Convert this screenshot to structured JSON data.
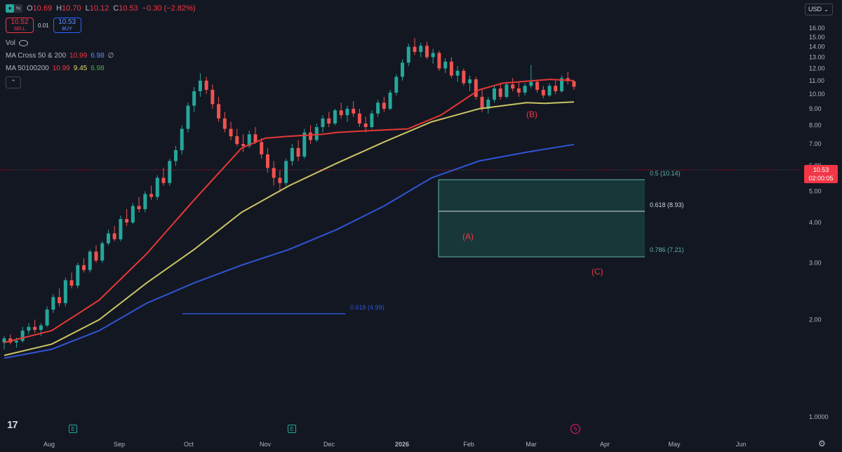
{
  "header": {
    "ohlc": [
      {
        "key": "O",
        "value": "10.69"
      },
      {
        "key": "H",
        "value": "10.70"
      },
      {
        "key": "L",
        "value": "10.12"
      },
      {
        "key": "C",
        "value": "10.53"
      }
    ],
    "change": "−0.30 (−2.82%)"
  },
  "trade": {
    "sell_price": "10.52",
    "sell_label": "SELL",
    "spread": "0.01",
    "buy_price": "10.53",
    "buy_label": "BUY"
  },
  "indicators": {
    "vol_label": "Vol",
    "ma_cross": {
      "name": "MA Cross 50 & 200",
      "v1": "10.99",
      "v2": "6.98",
      "extra": "∅"
    },
    "ma_triple": {
      "name": "MA 50100200",
      "v1": "10.99",
      "v2": "9.45",
      "v3": "6.98"
    }
  },
  "currency": "USD",
  "last_price": {
    "value": "10.53",
    "countdown": "02:00:05"
  },
  "colors": {
    "up": "#26a69a",
    "down": "#ef5350",
    "ma50": "#e53935",
    "ma100": "#c9c463",
    "ma200": "#2f55d4",
    "fib_zone": "#1f5f57",
    "annotation": "#f23645"
  },
  "icons": [
    "eye-icon",
    "chevron-up-icon",
    "chevron-down-icon",
    "settings-icon",
    "earnings-icon",
    "dividend-icon",
    "tradingview-logo-icon"
  ],
  "chart_data": {
    "type": "candlestick",
    "y_scale": "log",
    "y_ticks": [
      "16.00",
      "15.00",
      "14.00",
      "13.00",
      "12.00",
      "11.00",
      "10.00",
      "9.00",
      "8.00",
      "7.00",
      "6.00",
      "5.00",
      "4.00",
      "3.00",
      "2.00",
      "1.0000"
    ],
    "y_tick_values": [
      16,
      15,
      14,
      13,
      12,
      11,
      10,
      9,
      8,
      7,
      6,
      5,
      4,
      3,
      2,
      1
    ],
    "x_ticks": [
      "Aug",
      "Sep",
      "Oct",
      "Nov",
      "Dec",
      "2026",
      "Feb",
      "Mar",
      "Apr",
      "May",
      "Jun"
    ],
    "series": [
      {
        "name": "MA 50",
        "points": [
          [
            0,
            1.7
          ],
          [
            10,
            1.85
          ],
          [
            20,
            2.3
          ],
          [
            30,
            3.2
          ],
          [
            40,
            4.7
          ],
          [
            50,
            6.8
          ],
          [
            55,
            7.3
          ],
          [
            60,
            7.4
          ],
          [
            67,
            7.5
          ],
          [
            70,
            7.6
          ],
          [
            77,
            7.7
          ],
          [
            85,
            7.8
          ],
          [
            92,
            8.6
          ],
          [
            100,
            10.3
          ],
          [
            105,
            10.8
          ],
          [
            115,
            11.1
          ],
          [
            120,
            11.0
          ]
        ]
      },
      {
        "name": "MA 100",
        "points": [
          [
            0,
            1.55
          ],
          [
            10,
            1.68
          ],
          [
            20,
            2.0
          ],
          [
            30,
            2.6
          ],
          [
            40,
            3.3
          ],
          [
            50,
            4.3
          ],
          [
            60,
            5.2
          ],
          [
            70,
            6.1
          ],
          [
            80,
            7.1
          ],
          [
            90,
            8.2
          ],
          [
            100,
            9.0
          ],
          [
            105,
            9.2
          ],
          [
            110,
            9.4
          ],
          [
            114,
            9.35
          ],
          [
            120,
            9.45
          ]
        ]
      },
      {
        "name": "MA 200",
        "points": [
          [
            0,
            1.52
          ],
          [
            10,
            1.62
          ],
          [
            20,
            1.85
          ],
          [
            30,
            2.25
          ],
          [
            40,
            2.6
          ],
          [
            50,
            2.95
          ],
          [
            60,
            3.3
          ],
          [
            70,
            3.8
          ],
          [
            80,
            4.5
          ],
          [
            90,
            5.5
          ],
          [
            100,
            6.2
          ],
          [
            110,
            6.6
          ],
          [
            120,
            6.98
          ]
        ]
      }
    ],
    "candles_summary": "approximate daily candles from ~1.6 (late Jul 2025) to peak ~14.9 (early Jan 2026), last close 10.53",
    "candles": [
      [
        1.7,
        1.78,
        1.62,
        1.75
      ],
      [
        1.75,
        1.8,
        1.68,
        1.7
      ],
      [
        1.7,
        1.76,
        1.64,
        1.72
      ],
      [
        1.72,
        1.9,
        1.7,
        1.85
      ],
      [
        1.85,
        1.95,
        1.8,
        1.9
      ],
      [
        1.9,
        2.0,
        1.82,
        1.86
      ],
      [
        1.86,
        1.95,
        1.78,
        1.92
      ],
      [
        1.92,
        2.2,
        1.9,
        2.15
      ],
      [
        2.15,
        2.4,
        2.1,
        2.35
      ],
      [
        2.35,
        2.5,
        2.2,
        2.25
      ],
      [
        2.25,
        2.7,
        2.2,
        2.65
      ],
      [
        2.65,
        2.8,
        2.5,
        2.55
      ],
      [
        2.55,
        3.0,
        2.5,
        2.95
      ],
      [
        2.95,
        3.1,
        2.8,
        2.85
      ],
      [
        2.85,
        3.3,
        2.8,
        3.25
      ],
      [
        3.25,
        3.4,
        3.0,
        3.05
      ],
      [
        3.05,
        3.5,
        3.0,
        3.45
      ],
      [
        3.45,
        3.8,
        3.4,
        3.7
      ],
      [
        3.7,
        3.9,
        3.5,
        3.55
      ],
      [
        3.55,
        4.2,
        3.5,
        4.1
      ],
      [
        4.1,
        4.4,
        3.9,
        4.0
      ],
      [
        4.0,
        4.6,
        3.95,
        4.5
      ],
      [
        4.5,
        4.8,
        4.3,
        4.4
      ],
      [
        4.4,
        5.0,
        4.3,
        4.9
      ],
      [
        4.9,
        5.2,
        4.7,
        4.8
      ],
      [
        4.8,
        5.6,
        4.7,
        5.5
      ],
      [
        5.5,
        5.9,
        5.2,
        5.3
      ],
      [
        5.3,
        6.3,
        5.2,
        6.2
      ],
      [
        6.2,
        6.9,
        6.0,
        6.7
      ],
      [
        6.7,
        8.0,
        6.5,
        7.8
      ],
      [
        7.8,
        9.4,
        7.6,
        9.2
      ],
      [
        9.2,
        10.5,
        8.8,
        10.2
      ],
      [
        10.2,
        11.6,
        9.8,
        11.0
      ],
      [
        11.0,
        11.3,
        10.0,
        10.3
      ],
      [
        10.3,
        10.7,
        9.0,
        9.3
      ],
      [
        9.3,
        9.8,
        8.2,
        8.4
      ],
      [
        8.4,
        8.8,
        7.6,
        7.8
      ],
      [
        7.8,
        8.2,
        7.2,
        7.4
      ],
      [
        7.4,
        7.8,
        6.9,
        7.0
      ],
      [
        7.0,
        7.5,
        6.6,
        6.9
      ],
      [
        6.9,
        7.7,
        6.8,
        7.5
      ],
      [
        7.5,
        7.9,
        7.0,
        7.1
      ],
      [
        7.1,
        7.3,
        6.3,
        6.5
      ],
      [
        6.5,
        6.8,
        5.7,
        5.9
      ],
      [
        5.9,
        6.2,
        5.2,
        5.5
      ],
      [
        5.5,
        5.8,
        5.0,
        5.3
      ],
      [
        5.3,
        6.3,
        5.2,
        6.2
      ],
      [
        6.2,
        7.0,
        6.0,
        6.8
      ],
      [
        6.8,
        7.2,
        6.2,
        6.4
      ],
      [
        6.4,
        7.8,
        6.3,
        7.6
      ],
      [
        7.6,
        8.0,
        7.0,
        7.2
      ],
      [
        7.2,
        8.1,
        7.1,
        7.9
      ],
      [
        7.9,
        8.6,
        7.6,
        8.4
      ],
      [
        8.4,
        8.8,
        7.9,
        8.1
      ],
      [
        8.1,
        9.0,
        8.0,
        8.9
      ],
      [
        8.9,
        9.4,
        8.4,
        8.6
      ],
      [
        8.6,
        9.2,
        8.2,
        9.0
      ],
      [
        9.0,
        9.5,
        8.5,
        8.7
      ],
      [
        8.7,
        9.0,
        7.9,
        8.1
      ],
      [
        8.1,
        8.5,
        7.6,
        7.9
      ],
      [
        7.9,
        8.9,
        7.8,
        8.7
      ],
      [
        8.7,
        9.6,
        8.5,
        9.4
      ],
      [
        9.4,
        9.8,
        8.8,
        9.0
      ],
      [
        9.0,
        10.3,
        8.9,
        10.1
      ],
      [
        10.1,
        11.5,
        9.9,
        11.3
      ],
      [
        11.3,
        12.8,
        11.0,
        12.5
      ],
      [
        12.5,
        14.3,
        12.2,
        14.0
      ],
      [
        14.0,
        14.9,
        13.2,
        13.5
      ],
      [
        13.5,
        14.4,
        13.0,
        14.1
      ],
      [
        14.1,
        14.5,
        12.8,
        13.0
      ],
      [
        13.0,
        13.8,
        12.4,
        13.4
      ],
      [
        13.4,
        13.6,
        11.8,
        12.0
      ],
      [
        12.0,
        12.9,
        11.6,
        12.6
      ],
      [
        12.6,
        13.0,
        11.2,
        11.4
      ],
      [
        11.4,
        12.2,
        10.9,
        11.8
      ],
      [
        11.8,
        12.0,
        10.6,
        10.8
      ],
      [
        10.8,
        11.4,
        10.2,
        11.1
      ],
      [
        11.1,
        11.3,
        9.6,
        9.8
      ],
      [
        9.8,
        10.4,
        8.8,
        9.0
      ],
      [
        9.0,
        9.8,
        8.7,
        9.6
      ],
      [
        9.6,
        10.6,
        9.4,
        10.4
      ],
      [
        10.4,
        10.7,
        9.6,
        9.8
      ],
      [
        9.8,
        10.9,
        9.7,
        10.7
      ],
      [
        10.7,
        11.2,
        10.2,
        10.4
      ],
      [
        10.4,
        10.9,
        9.8,
        10.1
      ],
      [
        10.1,
        10.8,
        9.9,
        10.6
      ],
      [
        10.6,
        12.3,
        10.4,
        10.9
      ],
      [
        10.9,
        11.1,
        10.1,
        10.3
      ],
      [
        10.3,
        10.6,
        9.7,
        9.9
      ],
      [
        9.9,
        10.8,
        9.8,
        10.6
      ],
      [
        10.6,
        11.0,
        10.0,
        10.2
      ],
      [
        10.2,
        11.4,
        10.1,
        11.2
      ],
      [
        11.2,
        11.7,
        10.7,
        10.95
      ],
      [
        10.95,
        11.0,
        10.3,
        10.53
      ]
    ],
    "fib_levels": [
      {
        "label": "0.5 (10.14)",
        "value": 10.14
      },
      {
        "label": "0.618 (8.93)",
        "value": 8.93
      },
      {
        "label": "0.786 (7.21)",
        "value": 7.21
      },
      {
        "label": "0.618 (4.99)",
        "value": 4.99
      }
    ],
    "annotations": [
      "(A)",
      "(B)",
      "(C)"
    ]
  }
}
